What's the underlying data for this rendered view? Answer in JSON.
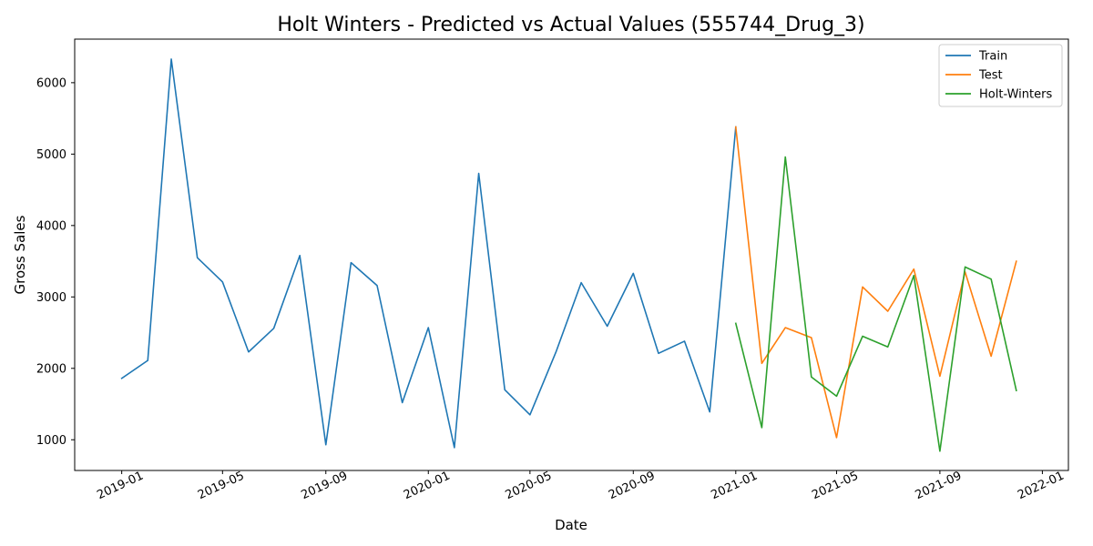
{
  "chart_data": {
    "type": "line",
    "title": "Holt Winters - Predicted vs Actual Values (555744_Drug_3)",
    "xlabel": "Date",
    "ylabel": "Gross Sales",
    "xlim": [
      "2018-11-06",
      "2022-02-01"
    ],
    "ylim": [
      570,
      6610
    ],
    "x_ticks": [
      "2019-01",
      "2019-05",
      "2019-09",
      "2020-01",
      "2020-05",
      "2020-09",
      "2021-01",
      "2021-05",
      "2021-09",
      "2022-01"
    ],
    "y_ticks": [
      1000,
      2000,
      3000,
      4000,
      5000,
      6000
    ],
    "grid": false,
    "legend_position": "top-right",
    "series": [
      {
        "name": "Train",
        "color": "#1f77b4",
        "x": [
          "2019-01-01",
          "2019-02-01",
          "2019-03-01",
          "2019-04-01",
          "2019-05-01",
          "2019-06-01",
          "2019-07-01",
          "2019-08-01",
          "2019-09-01",
          "2019-10-01",
          "2019-11-01",
          "2019-12-01",
          "2020-01-01",
          "2020-02-01",
          "2020-03-01",
          "2020-04-01",
          "2020-05-01",
          "2020-06-01",
          "2020-07-01",
          "2020-08-01",
          "2020-09-01",
          "2020-10-01",
          "2020-11-01",
          "2020-12-01",
          "2021-01-01"
        ],
        "values": [
          1860,
          2110,
          6330,
          3550,
          3210,
          2230,
          2560,
          3580,
          930,
          3480,
          3160,
          1520,
          2570,
          890,
          4730,
          1700,
          1350,
          2230,
          3200,
          2590,
          3330,
          2210,
          2380,
          1390,
          5380
        ]
      },
      {
        "name": "Test",
        "color": "#ff7f0e",
        "x": [
          "2021-01-01",
          "2021-02-01",
          "2021-03-01",
          "2021-04-01",
          "2021-05-01",
          "2021-06-01",
          "2021-07-01",
          "2021-08-01",
          "2021-09-01",
          "2021-10-01",
          "2021-11-01",
          "2021-12-01"
        ],
        "values": [
          5380,
          2070,
          2570,
          2430,
          1030,
          3140,
          2800,
          3390,
          1890,
          3350,
          2170,
          3500
        ]
      },
      {
        "name": "Holt-Winters",
        "color": "#2ca02c",
        "x": [
          "2021-01-01",
          "2021-02-01",
          "2021-03-01",
          "2021-04-01",
          "2021-05-01",
          "2021-06-01",
          "2021-07-01",
          "2021-08-01",
          "2021-09-01",
          "2021-10-01",
          "2021-11-01",
          "2021-12-01"
        ],
        "values": [
          2630,
          1170,
          4960,
          1880,
          1610,
          2450,
          2300,
          3300,
          840,
          3420,
          3250,
          1690
        ]
      }
    ]
  }
}
